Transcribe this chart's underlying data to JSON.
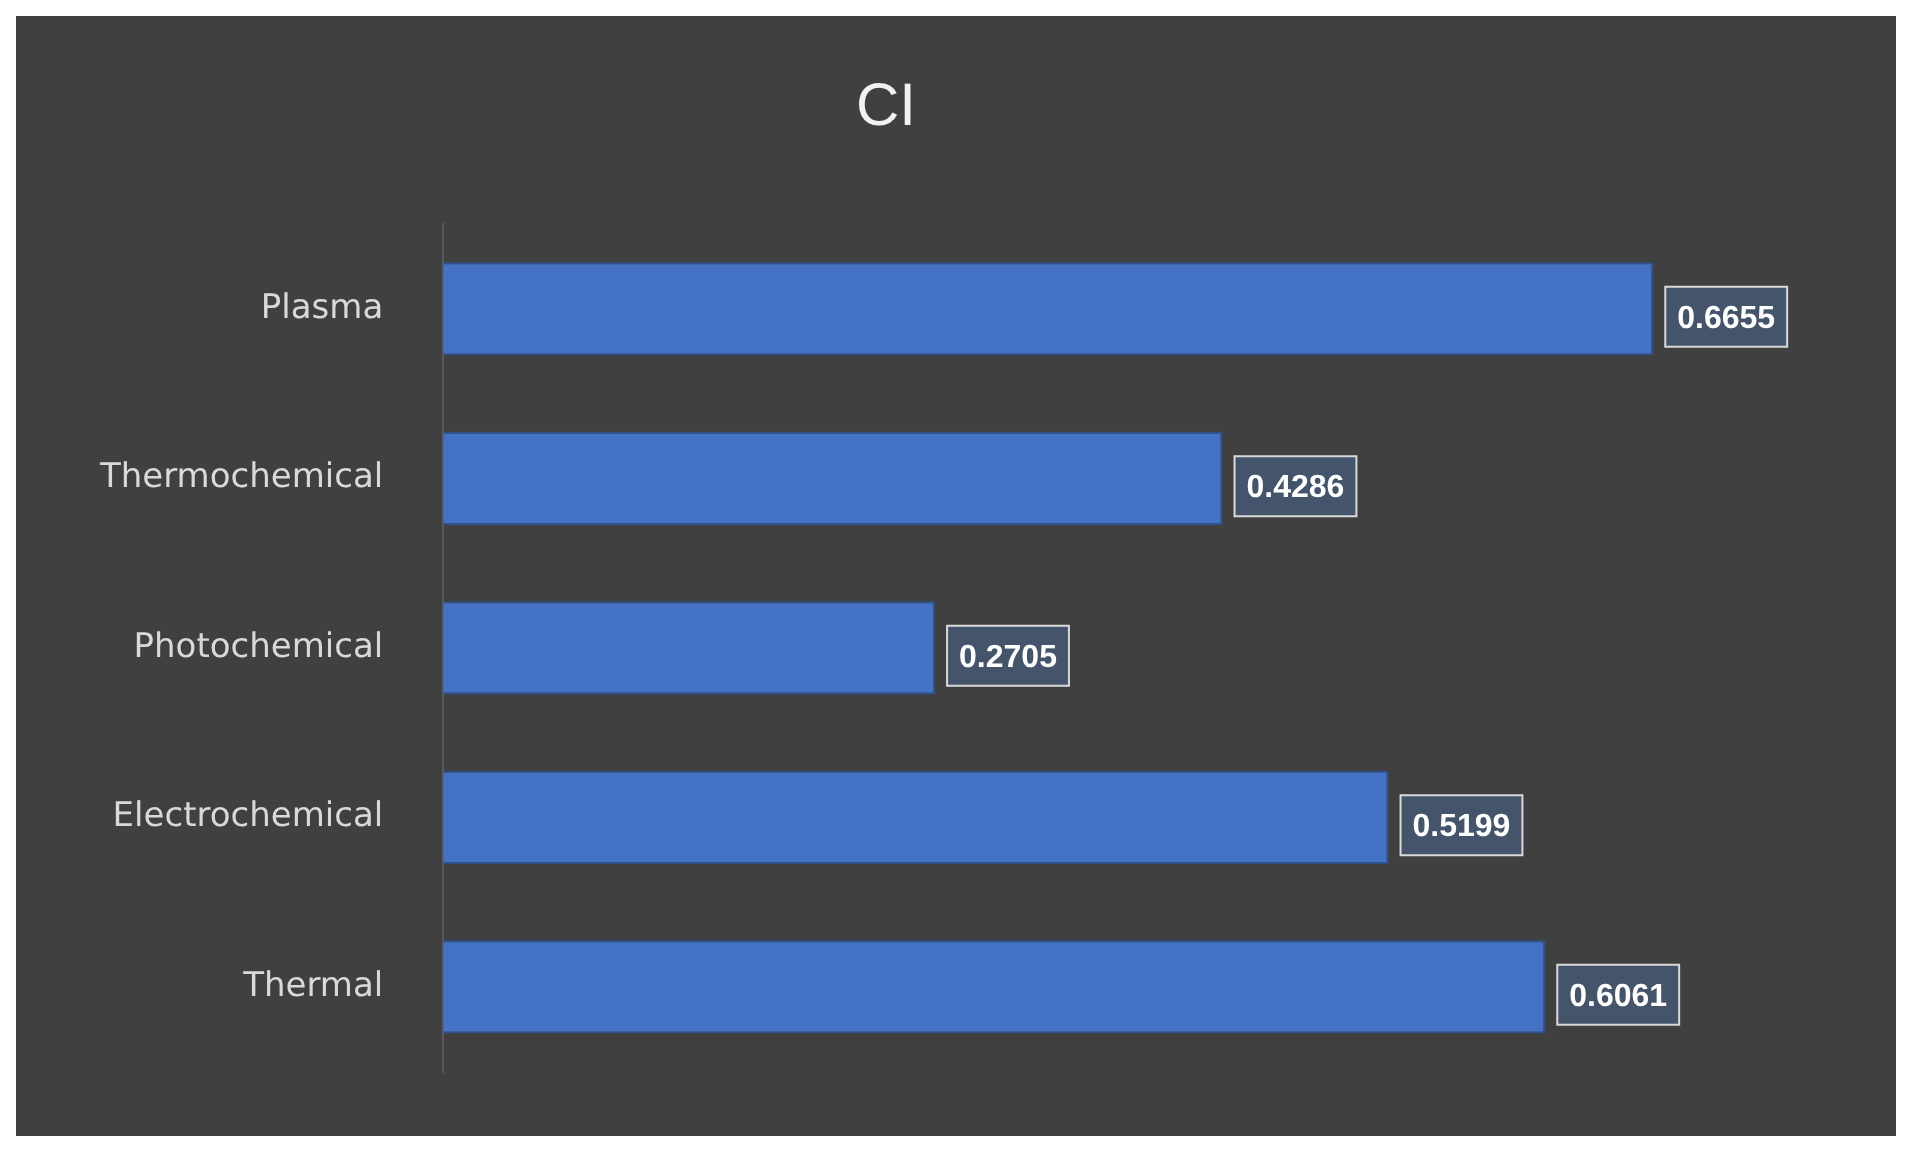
{
  "chart_data": {
    "type": "bar",
    "orientation": "horizontal",
    "title": "CI",
    "categories": [
      "Plasma",
      "Thermochemical",
      "Photochemical",
      "Electrochemical",
      "Thermal"
    ],
    "values": [
      0.6655,
      0.4286,
      0.2705,
      0.5199,
      0.6061
    ],
    "color": "#4472c4",
    "data_labels": true,
    "legend": false
  }
}
